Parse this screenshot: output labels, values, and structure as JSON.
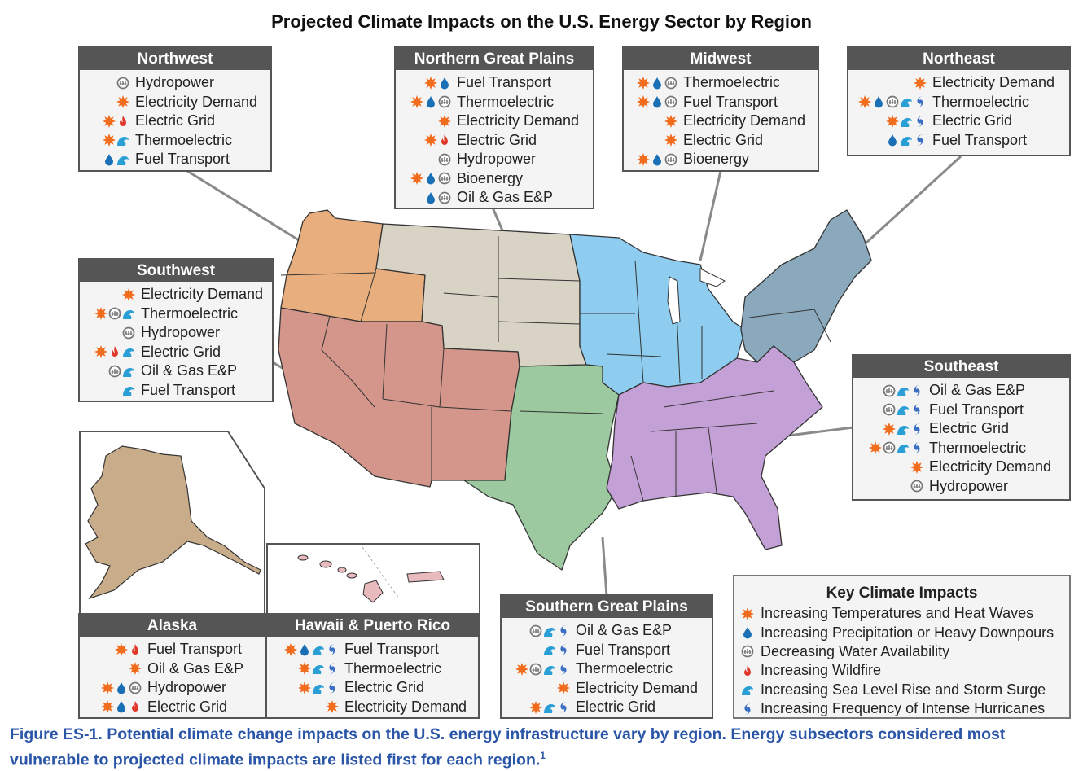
{
  "title": "Projected Climate Impacts on the U.S. Energy Sector by Region",
  "impact_icons": {
    "heat": {
      "icon": "sun-burst-icon",
      "color": "#f26c1e"
    },
    "precip": {
      "icon": "water-drop-icon",
      "color": "#1a6fb5"
    },
    "water": {
      "icon": "dry-water-icon",
      "color": "#777777"
    },
    "fire": {
      "icon": "flame-icon",
      "color": "#e0392b"
    },
    "sea": {
      "icon": "wave-icon",
      "color": "#2a9fd6"
    },
    "hurricane": {
      "icon": "hurricane-icon",
      "color": "#3a6fc4"
    }
  },
  "regions": {
    "northwest": {
      "name": "Northwest",
      "color": "#e8ae7d",
      "items": [
        {
          "label": "Hydropower",
          "icons": [
            "water"
          ]
        },
        {
          "label": "Electricity Demand",
          "icons": [
            "heat"
          ]
        },
        {
          "label": "Electric Grid",
          "icons": [
            "heat",
            "fire"
          ]
        },
        {
          "label": "Thermoelectric",
          "icons": [
            "heat",
            "sea"
          ]
        },
        {
          "label": "Fuel Transport",
          "icons": [
            "precip",
            "sea"
          ]
        }
      ]
    },
    "ngp": {
      "name": "Northern Great Plains",
      "color": "#d8d3c4",
      "items": [
        {
          "label": "Fuel Transport",
          "icons": [
            "heat",
            "precip"
          ]
        },
        {
          "label": "Thermoelectric",
          "icons": [
            "heat",
            "precip",
            "water"
          ]
        },
        {
          "label": "Electricity Demand",
          "icons": [
            "heat"
          ]
        },
        {
          "label": "Electric Grid",
          "icons": [
            "heat",
            "fire"
          ]
        },
        {
          "label": "Hydropower",
          "icons": [
            "water"
          ]
        },
        {
          "label": "Bioenergy",
          "icons": [
            "heat",
            "precip",
            "water"
          ]
        },
        {
          "label": "Oil & Gas E&P",
          "icons": [
            "precip",
            "water"
          ]
        }
      ]
    },
    "midwest": {
      "name": "Midwest",
      "color": "#8ecdf0",
      "items": [
        {
          "label": "Thermoelectric",
          "icons": [
            "heat",
            "precip",
            "water"
          ]
        },
        {
          "label": "Fuel Transport",
          "icons": [
            "heat",
            "precip",
            "water"
          ]
        },
        {
          "label": "Electricity Demand",
          "icons": [
            "heat"
          ]
        },
        {
          "label": "Electric Grid",
          "icons": [
            "heat"
          ]
        },
        {
          "label": "Bioenergy",
          "icons": [
            "heat",
            "precip",
            "water"
          ]
        }
      ]
    },
    "northeast": {
      "name": "Northeast",
      "color": "#8aa9bd",
      "items": [
        {
          "label": "Electricity Demand",
          "icons": [
            "heat"
          ]
        },
        {
          "label": "Thermoelectric",
          "icons": [
            "heat",
            "precip",
            "water",
            "sea",
            "hurricane"
          ]
        },
        {
          "label": "Electric Grid",
          "icons": [
            "heat",
            "sea",
            "hurricane"
          ]
        },
        {
          "label": "Fuel Transport",
          "icons": [
            "precip",
            "sea",
            "hurricane"
          ]
        }
      ]
    },
    "southwest": {
      "name": "Southwest",
      "color": "#d4968a",
      "items": [
        {
          "label": "Electricity Demand",
          "icons": [
            "heat"
          ]
        },
        {
          "label": "Thermoelectric",
          "icons": [
            "heat",
            "water",
            "sea"
          ]
        },
        {
          "label": "Hydropower",
          "icons": [
            "water"
          ]
        },
        {
          "label": "Electric Grid",
          "icons": [
            "heat",
            "fire",
            "sea"
          ]
        },
        {
          "label": "Oil & Gas E&P",
          "icons": [
            "water",
            "sea"
          ]
        },
        {
          "label": "Fuel Transport",
          "icons": [
            "sea"
          ]
        }
      ]
    },
    "southeast": {
      "name": "Southeast",
      "color": "#c3a0d6",
      "items": [
        {
          "label": "Oil & Gas E&P",
          "icons": [
            "water",
            "sea",
            "hurricane"
          ]
        },
        {
          "label": "Fuel Transport",
          "icons": [
            "water",
            "sea",
            "hurricane"
          ]
        },
        {
          "label": "Electric Grid",
          "icons": [
            "heat",
            "sea",
            "hurricane"
          ]
        },
        {
          "label": "Thermoelectric",
          "icons": [
            "heat",
            "water",
            "sea",
            "hurricane"
          ]
        },
        {
          "label": "Electricity Demand",
          "icons": [
            "heat"
          ]
        },
        {
          "label": "Hydropower",
          "icons": [
            "water"
          ]
        }
      ]
    },
    "sgp": {
      "name": "Southern Great Plains",
      "color": "#9cc9a0",
      "items": [
        {
          "label": "Oil & Gas E&P",
          "icons": [
            "water",
            "sea",
            "hurricane"
          ]
        },
        {
          "label": "Fuel Transport",
          "icons": [
            "sea",
            "hurricane"
          ]
        },
        {
          "label": "Thermoelectric",
          "icons": [
            "heat",
            "water",
            "sea",
            "hurricane"
          ]
        },
        {
          "label": "Electricity Demand",
          "icons": [
            "heat"
          ]
        },
        {
          "label": "Electric Grid",
          "icons": [
            "heat",
            "sea",
            "hurricane"
          ]
        }
      ]
    },
    "alaska": {
      "name": "Alaska",
      "color": "#c9ad8a",
      "items": [
        {
          "label": "Fuel Transport",
          "icons": [
            "heat",
            "fire"
          ]
        },
        {
          "label": "Oil & Gas E&P",
          "icons": [
            "heat"
          ]
        },
        {
          "label": "Hydropower",
          "icons": [
            "heat",
            "precip",
            "water"
          ]
        },
        {
          "label": "Electric Grid",
          "icons": [
            "heat",
            "precip",
            "fire"
          ]
        }
      ]
    },
    "hawaii": {
      "name": "Hawaii & Puerto Rico",
      "color": "#e8b9bd",
      "items": [
        {
          "label": "Fuel Transport",
          "icons": [
            "heat",
            "precip",
            "sea",
            "hurricane"
          ]
        },
        {
          "label": "Thermoelectric",
          "icons": [
            "heat",
            "sea",
            "hurricane"
          ]
        },
        {
          "label": "Electric Grid",
          "icons": [
            "heat",
            "sea",
            "hurricane"
          ]
        },
        {
          "label": "Electricity Demand",
          "icons": [
            "heat"
          ]
        }
      ]
    }
  },
  "legend": {
    "title": "Key Climate Impacts",
    "items": [
      {
        "key": "heat",
        "label": "Increasing Temperatures and Heat Waves"
      },
      {
        "key": "precip",
        "label": "Increasing Precipitation or Heavy Downpours"
      },
      {
        "key": "water",
        "label": "Decreasing Water Availability"
      },
      {
        "key": "fire",
        "label": "Increasing Wildfire"
      },
      {
        "key": "sea",
        "label": "Increasing Sea Level Rise and Storm Surge"
      },
      {
        "key": "hurricane",
        "label": "Increasing Frequency of Intense Hurricanes"
      }
    ]
  },
  "caption": {
    "text": "Figure ES-1. Potential climate change impacts on the U.S. energy infrastructure vary by region. Energy subsectors considered most vulnerable to projected climate impacts are listed first for each region.",
    "footnote": "1"
  }
}
